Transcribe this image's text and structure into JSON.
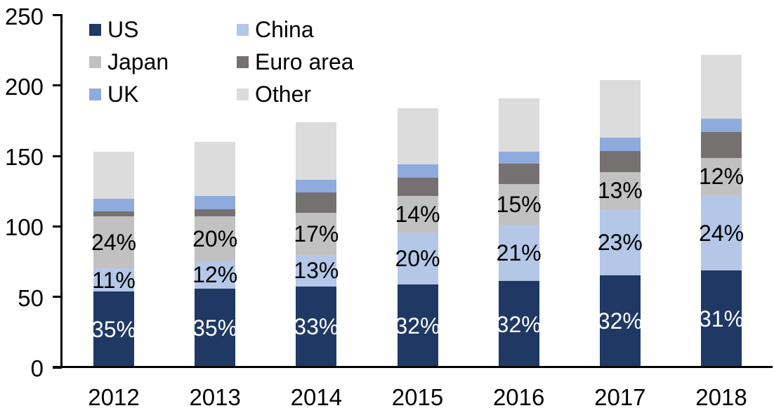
{
  "chart_data": {
    "type": "bar",
    "stacked": true,
    "stack_order": "bottom-to-top",
    "title": "",
    "xlabel": "",
    "ylabel": "",
    "categories": [
      "2012",
      "2013",
      "2014",
      "2015",
      "2016",
      "2017",
      "2018"
    ],
    "series": [
      {
        "name": "US",
        "color": "#1f3864",
        "values": [
          53.6,
          56.0,
          57.4,
          58.9,
          61.1,
          65.3,
          68.8
        ],
        "labels": [
          "35%",
          "35%",
          "33%",
          "32%",
          "32%",
          "32%",
          "31%"
        ],
        "label_color": "#ffffff"
      },
      {
        "name": "China",
        "color": "#b4c7e7",
        "values": [
          16.8,
          19.2,
          22.6,
          36.8,
          40.1,
          46.9,
          53.3
        ],
        "labels": [
          "11%",
          "12%",
          "13%",
          "20%",
          "21%",
          "23%",
          "24%"
        ],
        "label_color": "#000000"
      },
      {
        "name": "Japan",
        "color": "#c1c1c1",
        "values": [
          36.7,
          32.0,
          29.6,
          25.8,
          28.7,
          26.5,
          26.6
        ],
        "labels": [
          "24%",
          "20%",
          "17%",
          "14%",
          "15%",
          "13%",
          "12%"
        ],
        "label_color": "#000000"
      },
      {
        "name": "Euro area",
        "color": "#767171",
        "values": [
          3.5,
          5.0,
          14.5,
          13.0,
          14.5,
          15.0,
          18.5
        ],
        "labels": null,
        "label_color": "#000000"
      },
      {
        "name": "UK",
        "color": "#8faadc",
        "values": [
          9.0,
          9.5,
          9.0,
          9.5,
          8.5,
          9.5,
          9.5
        ],
        "labels": null,
        "label_color": "#000000"
      },
      {
        "name": "Other",
        "color": "#dcdcdc",
        "values": [
          33.4,
          38.3,
          40.9,
          40.0,
          38.1,
          40.8,
          45.3
        ],
        "labels": null,
        "label_color": "#000000"
      }
    ],
    "totals": [
      153,
      160,
      174,
      184,
      191,
      204,
      222
    ],
    "ylim": [
      0,
      250
    ],
    "yticks": [
      0,
      50,
      100,
      150,
      200,
      250
    ],
    "legend_position": "top-left",
    "legend_columns": 2,
    "grid": false,
    "axis_color": "#000000",
    "text_color": "#000000"
  }
}
